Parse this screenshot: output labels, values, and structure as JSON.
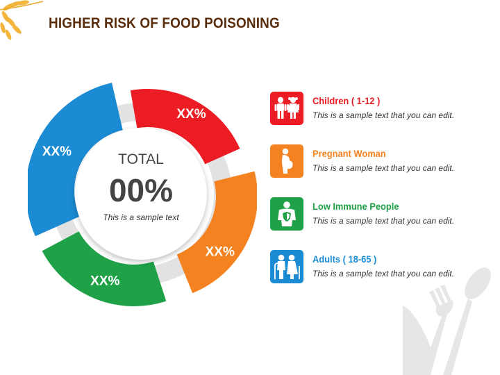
{
  "title": "HIGHER RISK OF FOOD POISONING",
  "colors": {
    "title": "#5a2d0c",
    "red": "#ec1c24",
    "orange": "#f58220",
    "green": "#1ea147",
    "blue": "#1b8bd3",
    "track": "#e2e2e2"
  },
  "donut": {
    "total_label": "TOTAL",
    "total_value": "00%",
    "subtitle": "This is a sample text",
    "segments": [
      {
        "label": "XX%",
        "color": "#ec1c24"
      },
      {
        "label": "XX%",
        "color": "#f58220"
      },
      {
        "label": "XX%",
        "color": "#1ea147"
      },
      {
        "label": "XX%",
        "color": "#1b8bd3"
      }
    ]
  },
  "legend": [
    {
      "title": "Children ( 1-12 )",
      "desc": "This is a sample text that you can edit.",
      "color": "#ec1c24",
      "icon": "children-icon"
    },
    {
      "title": "Pregnant Woman",
      "desc": "This is a sample text that you can edit.",
      "color": "#f58220",
      "icon": "pregnant-woman-icon"
    },
    {
      "title": "Low Immune People",
      "desc": "This is a sample text that you can edit.",
      "color": "#1ea147",
      "icon": "shield-person-icon"
    },
    {
      "title": "Adults ( 18-65 )",
      "desc": "This is a sample text that you can edit.",
      "color": "#1b8bd3",
      "icon": "elderly-couple-icon"
    }
  ]
}
